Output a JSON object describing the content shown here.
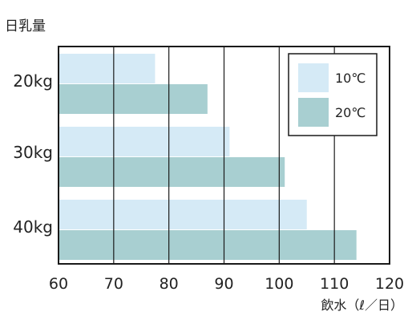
{
  "chart_data": {
    "type": "bar",
    "orientation": "horizontal",
    "ylabel": "日乳量",
    "xlabel": "飲水（ℓ／日）",
    "categories": [
      "20kg",
      "30kg",
      "40kg"
    ],
    "series": [
      {
        "name": "10℃",
        "color": "#d5eaf6",
        "values": [
          77.5,
          91,
          105
        ]
      },
      {
        "name": "20℃",
        "color": "#a8cfd1",
        "values": [
          87,
          101,
          114
        ]
      }
    ],
    "xlim": [
      60,
      120
    ],
    "xticks": [
      60,
      70,
      80,
      90,
      100,
      110,
      120
    ],
    "grid": "vertical",
    "legend_position": "top-right"
  }
}
